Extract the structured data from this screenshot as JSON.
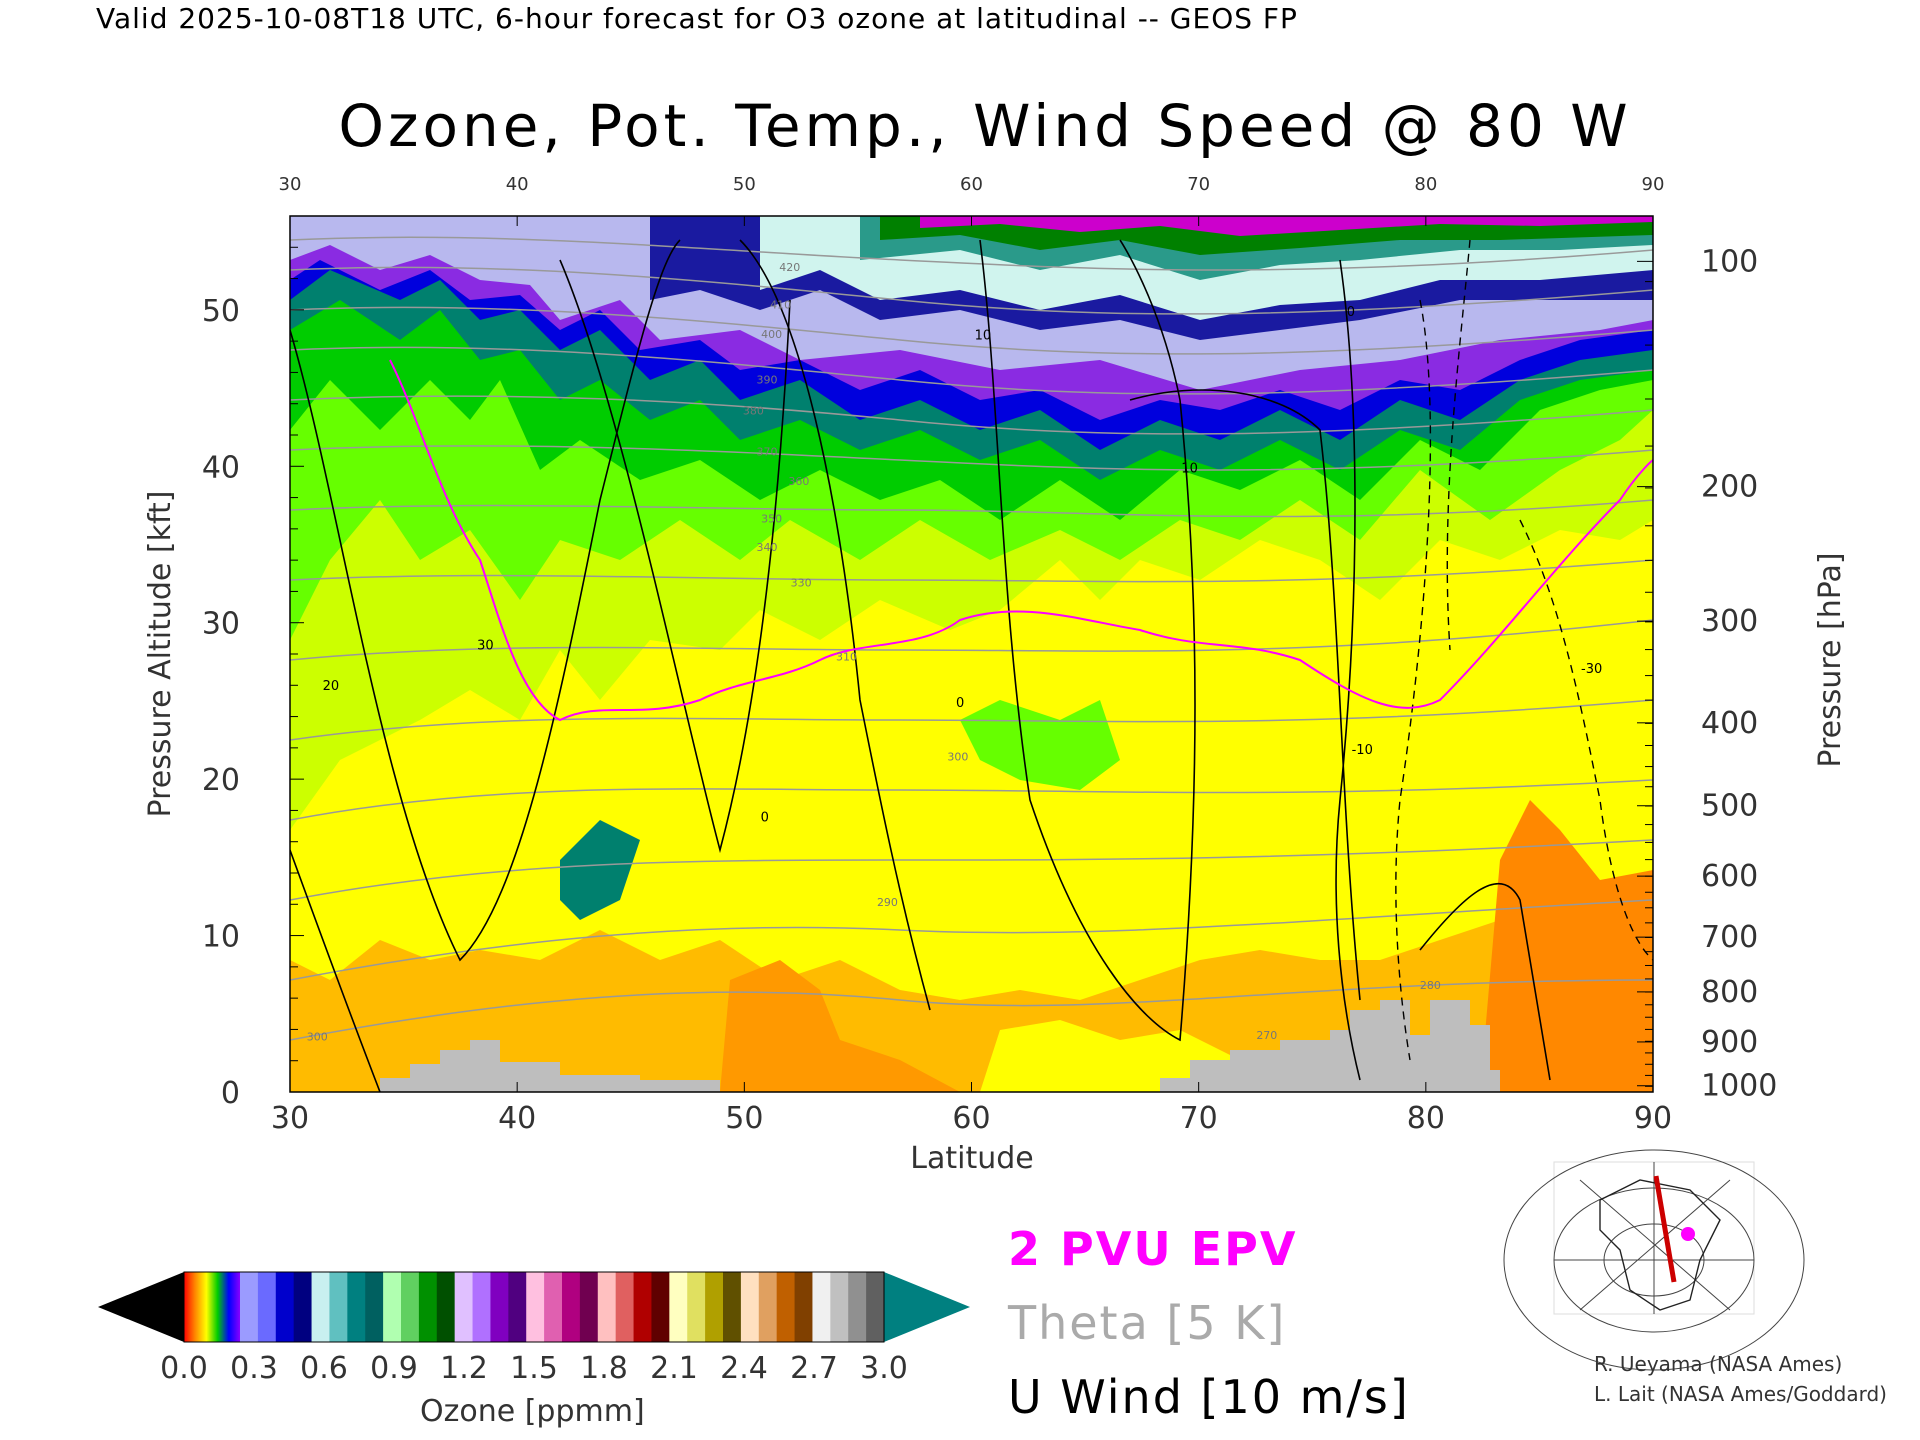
{
  "header": {
    "valid_line": "Valid 2025-10-08T18 UTC, 6-hour forecast for O3 ozone at latitudinal -- GEOS FP",
    "title": "Ozone, Pot. Temp., Wind Speed @ 80 W"
  },
  "chart_data": {
    "type": "heatmap",
    "xlabel": "Latitude",
    "ylabel": "Pressure Altitude [kft]",
    "y2label": "Pressure [hPa]",
    "xlim": [
      30,
      90
    ],
    "ylim": [
      0,
      56
    ],
    "x_ticks": [
      30,
      40,
      50,
      60,
      70,
      80,
      90
    ],
    "y_ticks": [
      0,
      10,
      20,
      30,
      40,
      50
    ],
    "pressure_ticks": [
      {
        "label": "100",
        "kft": 53.1
      },
      {
        "label": "200",
        "kft": 38.7
      },
      {
        "label": "300",
        "kft": 30.1
      },
      {
        "label": "400",
        "kft": 23.6
      },
      {
        "label": "500",
        "kft": 18.3
      },
      {
        "label": "600",
        "kft": 13.8
      },
      {
        "label": "700",
        "kft": 9.9
      },
      {
        "label": "800",
        "kft": 6.4
      },
      {
        "label": "900",
        "kft": 3.2
      },
      {
        "label": "1000",
        "kft": 0.4
      }
    ],
    "theta_labels": [
      {
        "text": "420",
        "lat": 52,
        "kft": 52.5
      },
      {
        "text": "410",
        "lat": 51.6,
        "kft": 50.1
      },
      {
        "text": "400",
        "lat": 51.2,
        "kft": 48.2
      },
      {
        "text": "390",
        "lat": 51,
        "kft": 45.3
      },
      {
        "text": "380",
        "lat": 50.4,
        "kft": 43.3
      },
      {
        "text": "370",
        "lat": 51,
        "kft": 40.7
      },
      {
        "text": "360",
        "lat": 52.4,
        "kft": 38.8
      },
      {
        "text": "350",
        "lat": 51.2,
        "kft": 36.4
      },
      {
        "text": "340",
        "lat": 51,
        "kft": 34.6
      },
      {
        "text": "330",
        "lat": 52.5,
        "kft": 32.3
      },
      {
        "text": "310",
        "lat": 54.5,
        "kft": 27.6
      },
      {
        "text": "300",
        "lat": 59.4,
        "kft": 21.2
      },
      {
        "text": "290",
        "lat": 56.3,
        "kft": 11.9
      },
      {
        "text": "280",
        "lat": 80.2,
        "kft": 6.6
      },
      {
        "text": "270",
        "lat": 73,
        "kft": 3.4
      },
      {
        "text": "300",
        "lat": 31.2,
        "kft": 3.3
      }
    ],
    "u_wind_labels": [
      {
        "text": "30",
        "lat": 38.6,
        "kft": 28.3
      },
      {
        "text": "20",
        "lat": 31.8,
        "kft": 25.7
      },
      {
        "text": "10",
        "lat": 60.5,
        "kft": 48.1
      },
      {
        "text": "10",
        "lat": 69.6,
        "kft": 39.6
      },
      {
        "text": "0",
        "lat": 59.5,
        "kft": 24.6
      },
      {
        "text": "0",
        "lat": 76.7,
        "kft": 49.6
      },
      {
        "text": "-10",
        "lat": 77.2,
        "kft": 21.6
      },
      {
        "text": "0",
        "lat": 50.9,
        "kft": 17.3
      },
      {
        "text": "-30",
        "lat": 87.3,
        "kft": 26.8
      }
    ],
    "ozone_colorbar": {
      "label": "Ozone [ppmm]",
      "ticks": [
        "0.0",
        "0.3",
        "0.6",
        "0.9",
        "1.2",
        "1.5",
        "1.8",
        "2.1",
        "2.4",
        "2.7",
        "3.0"
      ]
    },
    "legend": [
      "2 PVU EPV",
      "Theta [5 K]",
      "U Wind [10 m/s]"
    ],
    "legend_placement": "bottom-right"
  },
  "credits": [
    "R. Ueyama (NASA Ames)",
    "L. Lait (NASA Ames/Goddard)"
  ],
  "colors": {
    "pv": "#ff00ff",
    "theta": "#aaaaaa",
    "terrain": "#bebebe",
    "cross_section_line": "#cc0000"
  },
  "inset_map": {
    "icon": "globe-icon"
  }
}
